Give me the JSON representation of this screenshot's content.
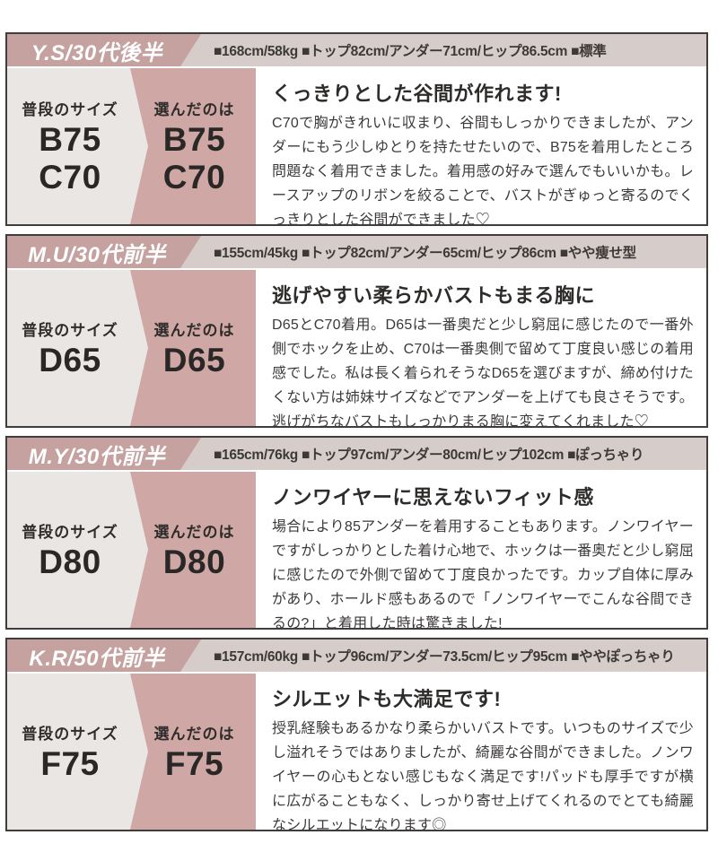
{
  "colors": {
    "card_border": "#403d3c",
    "header_bg": "#d6cdcb",
    "name_badge_bg": "#c5a1a0",
    "usual_panel_bg": "#e9e6e4",
    "chosen_panel_bg": "#cfa7a5",
    "text_dark": "#2e2c2b"
  },
  "labels": {
    "usual": "普段のサイズ",
    "chosen": "選んだのは"
  },
  "reviews": [
    {
      "name": "Y.S/30代後半",
      "stats": "■168cm/58kg ■トップ82cm/アンダー71cm/ヒップ86.5cm ■標準",
      "usual_sizes": [
        "B75",
        "C70"
      ],
      "chosen_sizes": [
        "B75",
        "C70"
      ],
      "title": "くっきりとした谷間が作れます!",
      "body": "C70で胸がきれいに収まり、谷間もしっかりできましたが、アンダーにもう少しゆとりを持たせたいので、B75を着用したところ問題なく着用できました。着用感の好みで選んでもいいかも。レースアップのリボンを絞ることで、バストがぎゅっと寄るのでくっきりとした谷間ができました♡"
    },
    {
      "name": "M.U/30代前半",
      "stats": "■155cm/45kg ■トップ82cm/アンダー65cm/ヒップ86cm ■やや痩せ型",
      "usual_sizes": [
        "D65"
      ],
      "chosen_sizes": [
        "D65"
      ],
      "title": "逃げやすい柔らかバストもまる胸に",
      "body": "D65とC70着用。D65は一番奥だと少し窮屈に感じたので一番外側でホックを止め、C70は一番奥側で留めて丁度良い感じの着用感でした。私は長く着られそうなD65を選びますが、締め付けたくない方は姉妹サイズなどでアンダーを上げても良さそうです。逃げがちなバストもしっかりまる胸に変えてくれました♡"
    },
    {
      "name": "M.Y/30代前半",
      "stats": "■165cm/76kg ■トップ97cm/アンダー80cm/ヒップ102cm ■ぽっちゃり",
      "usual_sizes": [
        "D80"
      ],
      "chosen_sizes": [
        "D80"
      ],
      "title": "ノンワイヤーに思えないフィット感",
      "body": "場合により85アンダーを着用することもあります。ノンワイヤーですがしっかりとした着け心地で、ホックは一番奥だと少し窮屈に感じたので外側で留めて丁度良かったです。カップ自体に厚みがあり、ホールド感もあるので「ノンワイヤーでこんな谷間できるの?」と着用した時は驚きました!"
    },
    {
      "name": "K.R/50代前半",
      "stats": "■157cm/60kg ■トップ96cm/アンダー73.5cm/ヒップ95cm ■ややぽっちゃり",
      "usual_sizes": [
        "F75"
      ],
      "chosen_sizes": [
        "F75"
      ],
      "title": "シルエットも大満足です!",
      "body": "授乳経験もあるかなり柔らかいバストです。いつものサイズで少し溢れそうではありましたが、綺麗な谷間ができました。ノンワイヤーの心もとない感じもなく満足です!パッドも厚手ですが横に広がることもなく、しっかり寄せ上げてくれるのでとても綺麗なシルエットになります◎"
    }
  ]
}
